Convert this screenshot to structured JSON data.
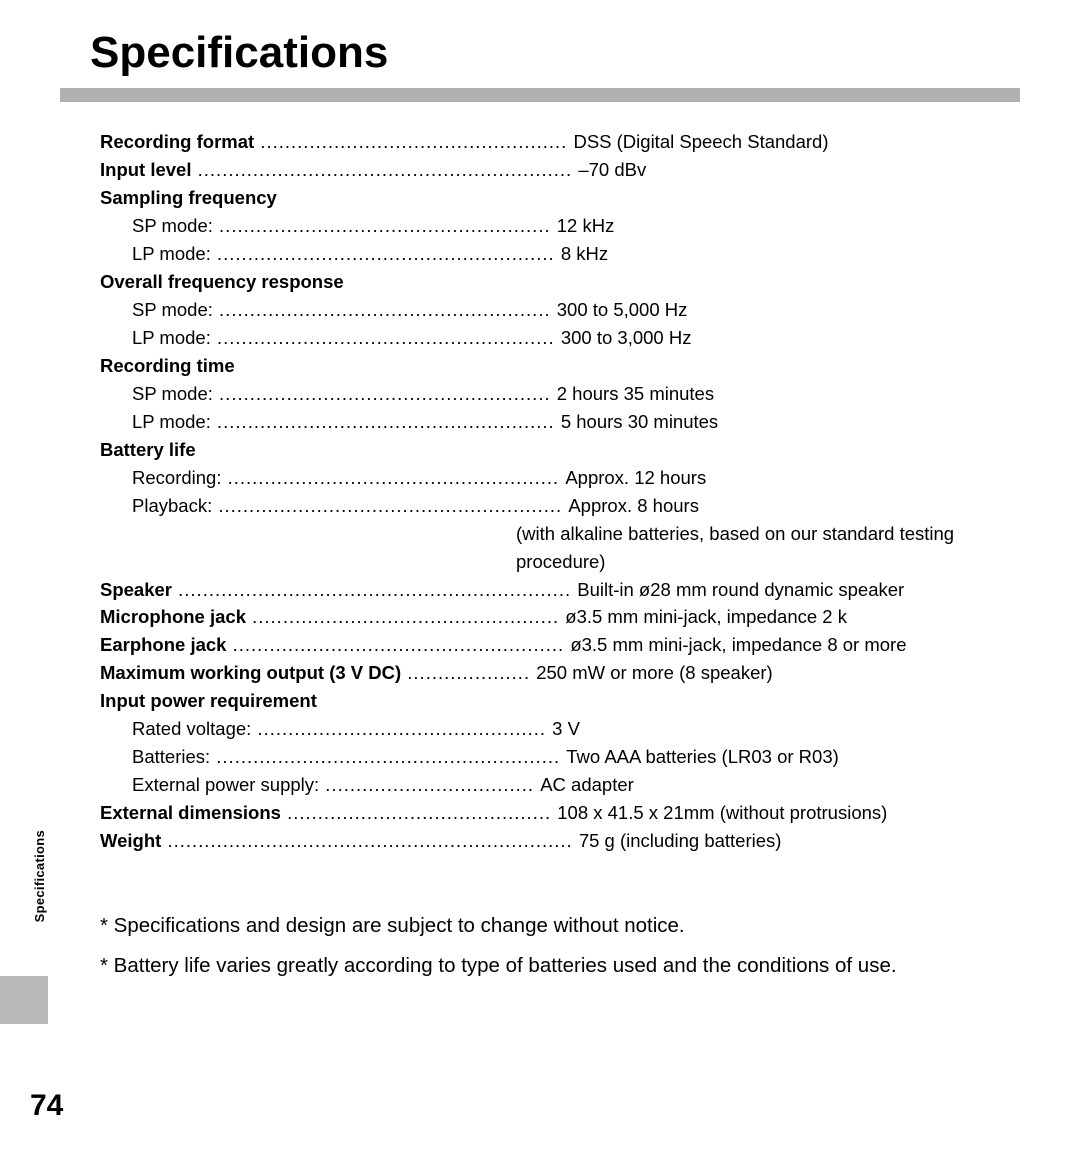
{
  "page": {
    "title": "Specifications",
    "side_label": "Specifications",
    "page_number": "74"
  },
  "specs": {
    "recording_format": {
      "label": "Recording format",
      "value": "DSS (Digital Speech Standard)"
    },
    "input_level": {
      "label": "Input level",
      "value": "–70 dBv"
    },
    "sampling_frequency": {
      "label": "Sampling frequency",
      "sp": {
        "label": "SP mode:",
        "value": "12 kHz"
      },
      "lp": {
        "label": "LP mode:",
        "value": "8 kHz"
      }
    },
    "overall_frequency_response": {
      "label": "Overall frequency response",
      "sp": {
        "label": "SP mode:",
        "value": "300 to 5,000 Hz"
      },
      "lp": {
        "label": "LP mode:",
        "value": "300 to 3,000 Hz"
      }
    },
    "recording_time": {
      "label": "Recording time",
      "sp": {
        "label": "SP mode:",
        "value": "2 hours 35 minutes"
      },
      "lp": {
        "label": "LP mode:",
        "value": "5 hours 30 minutes"
      }
    },
    "battery_life": {
      "label": "Battery life",
      "recording": {
        "label": "Recording:",
        "value": "Approx. 12 hours"
      },
      "playback": {
        "label": "Playback:",
        "value": "Approx. 8 hours"
      },
      "note_line1": "(with alkaline batteries, based on our standard testing",
      "note_line2": "procedure)"
    },
    "speaker": {
      "label": "Speaker",
      "value": "Built-in ø28 mm round dynamic speaker"
    },
    "microphone_jack": {
      "label": "Microphone jack",
      "value": "ø3.5 mm mini-jack, impedance 2 k"
    },
    "earphone_jack": {
      "label": "Earphone jack",
      "value": "ø3.5 mm mini-jack, impedance 8    or more"
    },
    "max_output": {
      "label": "Maximum working output (3 V DC)",
      "value": "250 mW or more (8    speaker)"
    },
    "input_power": {
      "label": "Input power requirement",
      "rated": {
        "label": "Rated voltage:",
        "value": "3 V"
      },
      "batteries": {
        "label": "Batteries:",
        "value": "Two AAA batteries  (LR03 or R03)"
      },
      "external": {
        "label": "External power supply:",
        "value": "AC adapter"
      }
    },
    "external_dimensions": {
      "label": "External dimensions",
      "value": "108 x 41.5 x 21mm (without protrusions)"
    },
    "weight": {
      "label": "Weight",
      "value": "75 g (including batteries)"
    }
  },
  "footnotes": {
    "n1": "* Specifications and design are subject to change without notice.",
    "n2": "* Battery life varies greatly according to type of batteries used and the conditions of use."
  },
  "style": {
    "divider_color": "#b0b0b0",
    "tab_color": "#b8b8b8",
    "text_color": "#000000",
    "background": "#ffffff",
    "title_fontsize": 44,
    "body_fontsize": 18.5,
    "footnote_fontsize": 20.5
  }
}
